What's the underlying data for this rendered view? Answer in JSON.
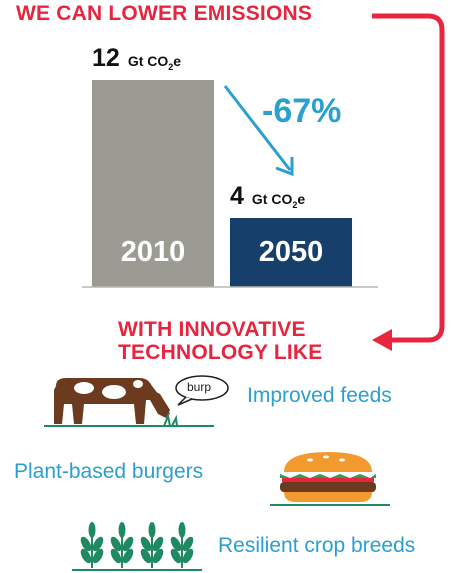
{
  "headline": "WE CAN LOWER EMISSIONS",
  "subhead_line1": "WITH INNOVATIVE",
  "subhead_line2": "TECHNOLOGY LIKE",
  "chart_data": {
    "type": "bar",
    "categories": [
      "2010",
      "2050"
    ],
    "values": [
      12,
      4
    ],
    "value_labels": [
      {
        "number": "12",
        "unit": "Gt CO",
        "sub": "2",
        "suffix": "e"
      },
      {
        "number": "4",
        "unit": "Gt CO",
        "sub": "2",
        "suffix": "e"
      }
    ],
    "colors": [
      "#9b9b93",
      "#173f6c"
    ],
    "change_label": "-67%",
    "ylim": [
      0,
      12
    ],
    "grid": false
  },
  "technologies": [
    {
      "label": "Improved feeds",
      "icon": "cow-icon",
      "bubble": "burp"
    },
    {
      "label": "Plant-based burgers",
      "icon": "burger-icon"
    },
    {
      "label": "Resilient crop breeds",
      "icon": "wheat-icon"
    }
  ],
  "colors": {
    "accent_red": "#e8253f",
    "accent_blue": "#2a9fd0",
    "cow_brown": "#6b3a1f",
    "crop_green": "#1f8a62"
  }
}
